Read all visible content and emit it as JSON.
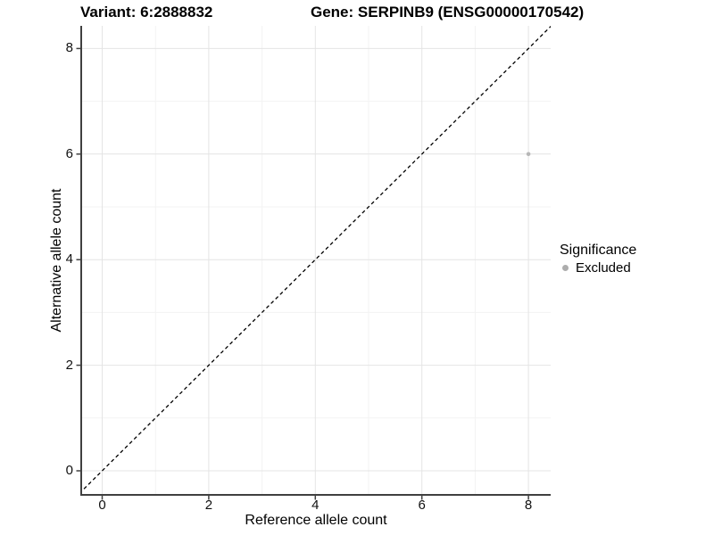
{
  "titles": {
    "variant": "Variant: 6:2888832",
    "gene": "Gene: SERPINB9 (ENSG00000170542)"
  },
  "chart_data": {
    "type": "scatter",
    "points": [
      {
        "x": 8,
        "y": 6,
        "series": "Excluded"
      }
    ],
    "xlabel": "Reference allele count",
    "ylabel": "Alternative allele count",
    "xticks": [
      0,
      2,
      4,
      6,
      8
    ],
    "yticks": [
      0,
      2,
      4,
      6,
      8
    ],
    "minor_xticks": [
      1,
      3,
      5,
      7
    ],
    "minor_yticks": [
      1,
      3,
      5,
      7
    ],
    "xlim": [
      -0.4,
      8.45
    ],
    "ylim": [
      -0.45,
      8.45
    ],
    "grid": "major+minor",
    "identity_line": {
      "style": "dashed",
      "equation": "y = x",
      "color": "#000000"
    },
    "point_color": "#b7b7b7",
    "legend": {
      "title": "Significance",
      "position": "right",
      "items": [
        {
          "label": "Excluded",
          "color": "#adadad"
        }
      ]
    }
  },
  "colors": {
    "background": "#ffffff",
    "grid_major": "#e4e4e4",
    "grid_minor": "#f3f3f3",
    "axis_line": "#404040",
    "tick_text": "#111111"
  }
}
